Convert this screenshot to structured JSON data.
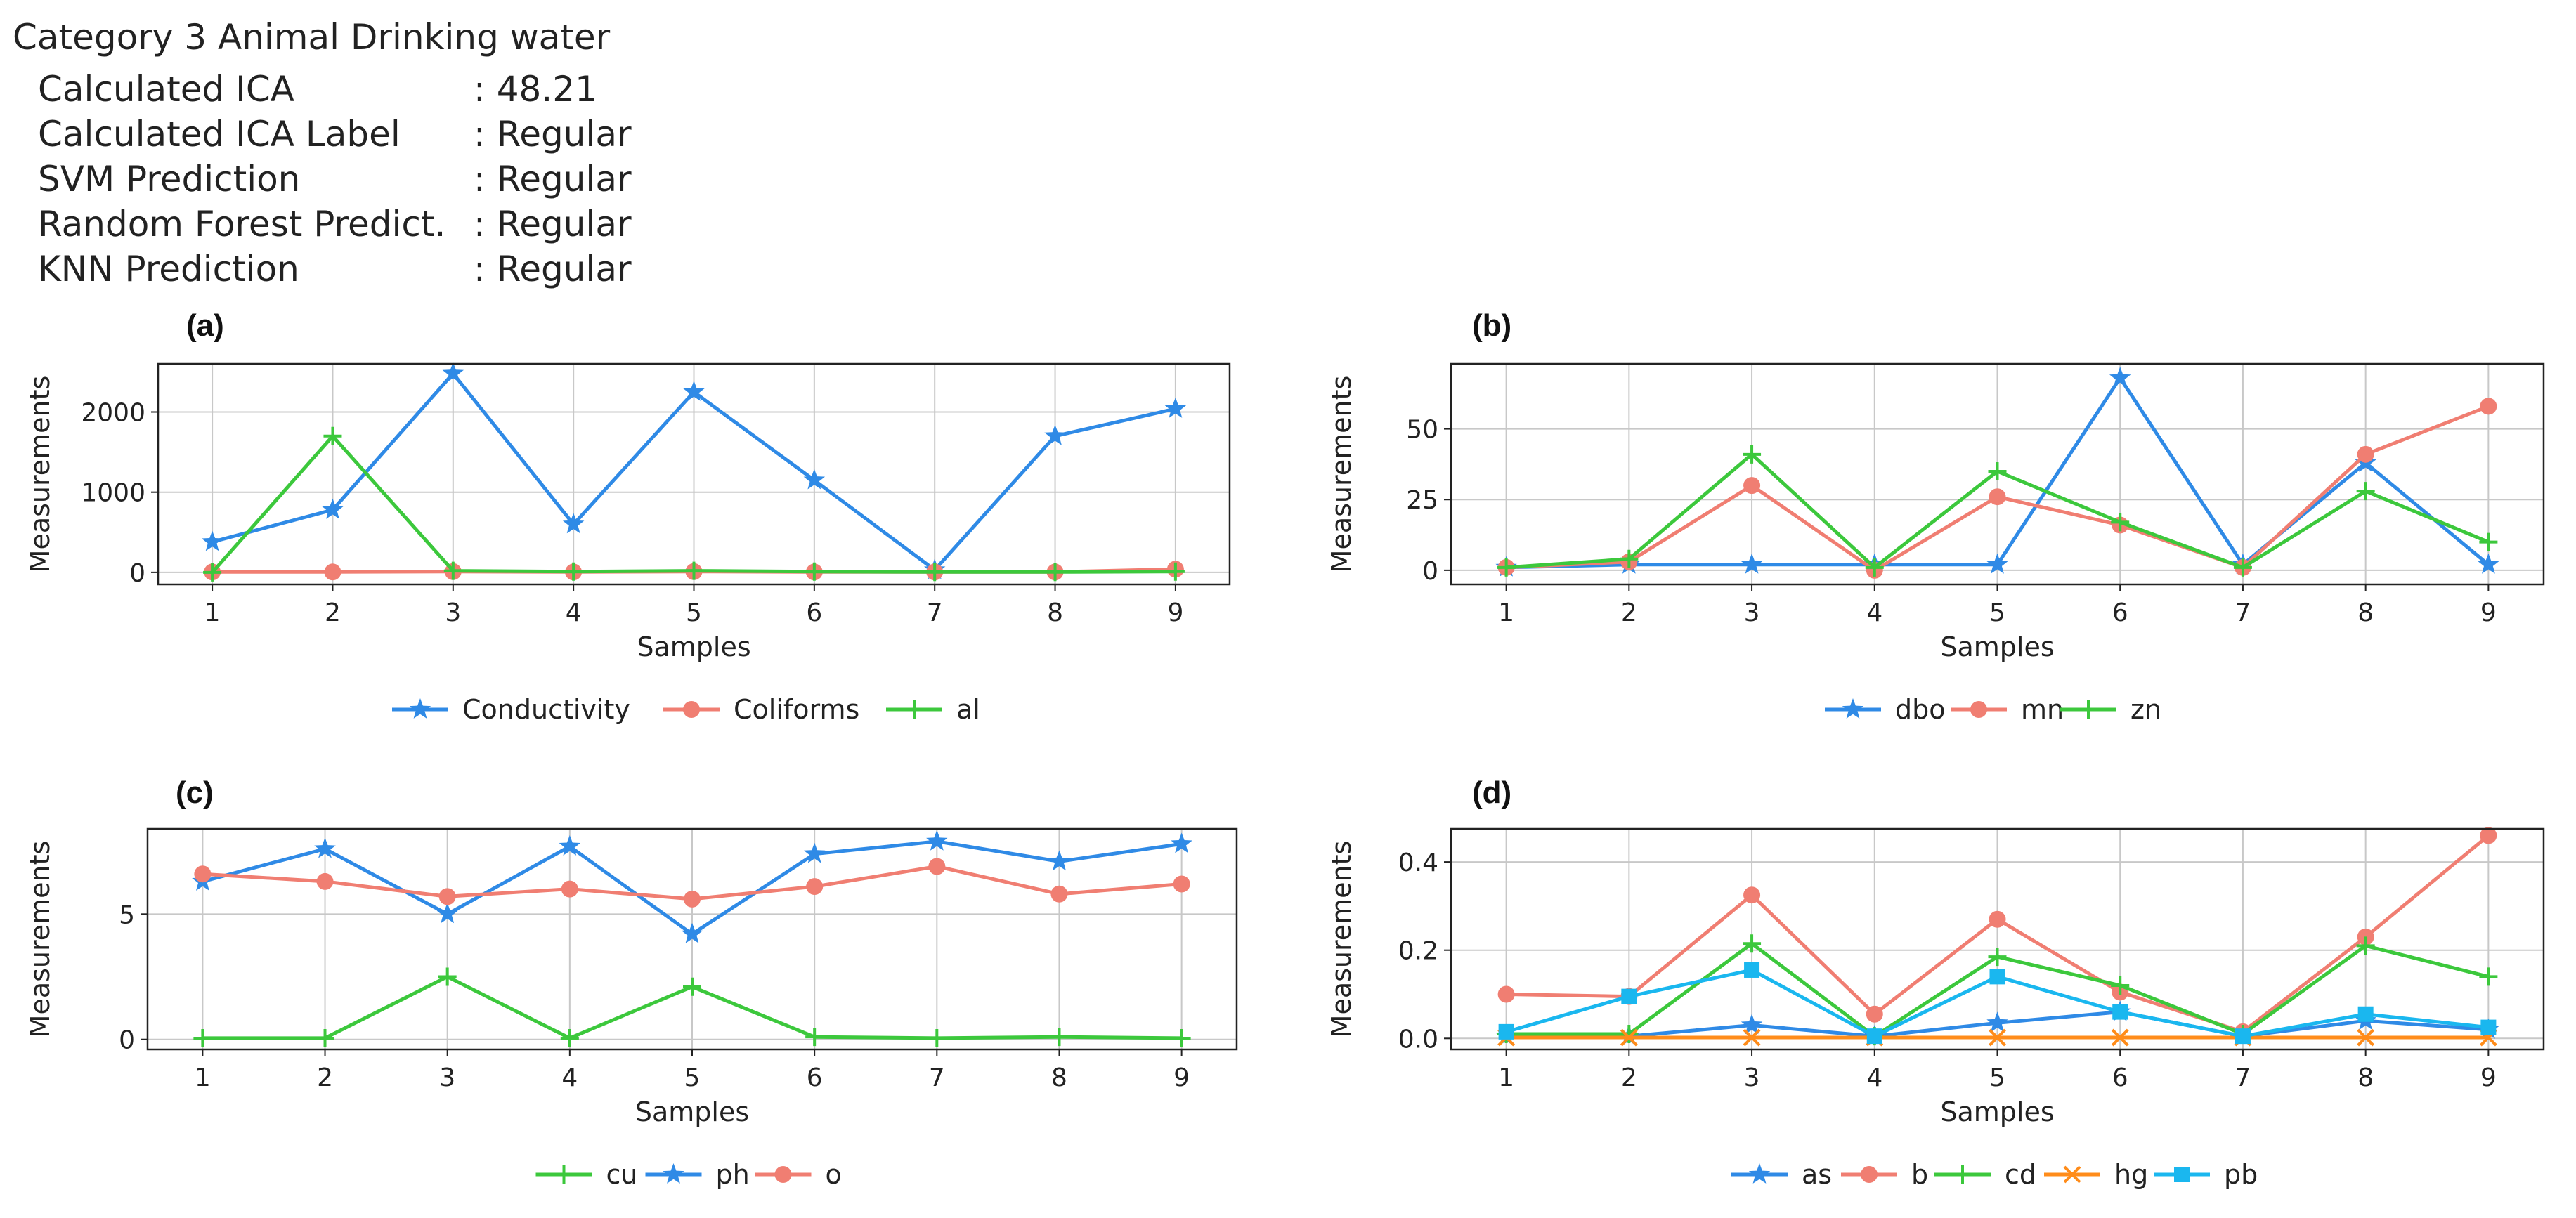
{
  "header": {
    "title": "Category 3 Animal Drinking water",
    "rows": [
      {
        "label": "Calculated ICA",
        "value": ": 48.21"
      },
      {
        "label": "Calculated ICA Label",
        "value": ": Regular"
      },
      {
        "label": "SVM Prediction",
        "value": ": Regular"
      },
      {
        "label": "Random Forest Predict.",
        "value": ": Regular"
      },
      {
        "label": "KNN Prediction",
        "value": ": Regular"
      }
    ]
  },
  "chart_data": [
    {
      "panel": "(a)",
      "type": "line",
      "x": [
        1,
        2,
        3,
        4,
        5,
        6,
        7,
        8,
        9
      ],
      "xlabel": "Samples",
      "ylabel": "Measurements",
      "ylim": [
        -150,
        2600
      ],
      "yticks": [
        0,
        1000,
        2000
      ],
      "grid": true,
      "legend_position": "bottom",
      "series": [
        {
          "name": "Conductivity",
          "color": "#2f8ae6",
          "marker": "star",
          "values": [
            380,
            780,
            2480,
            600,
            2250,
            1150,
            30,
            1700,
            2040
          ]
        },
        {
          "name": "Coliforms",
          "color": "#f07e72",
          "marker": "circle",
          "values": [
            5,
            5,
            10,
            5,
            10,
            5,
            5,
            5,
            40
          ]
        },
        {
          "name": "al",
          "color": "#3cc83c",
          "marker": "plus",
          "values": [
            0,
            1700,
            20,
            10,
            20,
            10,
            5,
            5,
            10
          ]
        }
      ]
    },
    {
      "panel": "(b)",
      "type": "line",
      "x": [
        1,
        2,
        3,
        4,
        5,
        6,
        7,
        8,
        9
      ],
      "xlabel": "Samples",
      "ylabel": "Measurements",
      "ylim": [
        -5,
        73
      ],
      "yticks": [
        0,
        25,
        50
      ],
      "grid": true,
      "legend_position": "bottom",
      "series": [
        {
          "name": "dbo",
          "color": "#2f8ae6",
          "marker": "star",
          "values": [
            1,
            2,
            2,
            2,
            2,
            68,
            2,
            38,
            2
          ]
        },
        {
          "name": "mn",
          "color": "#f07e72",
          "marker": "circle",
          "values": [
            1,
            3,
            30,
            0,
            26,
            16,
            1,
            41,
            58
          ]
        },
        {
          "name": "zn",
          "color": "#3cc83c",
          "marker": "plus",
          "values": [
            1,
            4,
            41,
            1,
            35,
            17,
            1,
            28,
            10
          ]
        }
      ]
    },
    {
      "panel": "(c)",
      "type": "line",
      "x": [
        1,
        2,
        3,
        4,
        5,
        6,
        7,
        8,
        9
      ],
      "xlabel": "Samples",
      "ylabel": "Measurements",
      "ylim": [
        -0.4,
        8.4
      ],
      "yticks": [
        0,
        5
      ],
      "grid": true,
      "legend_position": "bottom",
      "series": [
        {
          "name": "cu",
          "color": "#3cc83c",
          "marker": "plus",
          "values": [
            0.05,
            0.05,
            2.5,
            0.05,
            2.1,
            0.1,
            0.05,
            0.1,
            0.05
          ]
        },
        {
          "name": "ph",
          "color": "#2f8ae6",
          "marker": "star",
          "values": [
            6.3,
            7.6,
            5.0,
            7.7,
            4.2,
            7.4,
            7.9,
            7.1,
            7.8
          ]
        },
        {
          "name": "o",
          "color": "#f07e72",
          "marker": "circle",
          "values": [
            6.6,
            6.3,
            5.7,
            6.0,
            5.6,
            6.1,
            6.9,
            5.8,
            6.2
          ]
        }
      ]
    },
    {
      "panel": "(d)",
      "type": "line",
      "x": [
        1,
        2,
        3,
        4,
        5,
        6,
        7,
        8,
        9
      ],
      "xlabel": "Samples",
      "ylabel": "Measurements",
      "ylim": [
        -0.025,
        0.475
      ],
      "yticks": [
        0.0,
        0.2,
        0.4
      ],
      "grid": true,
      "legend_position": "bottom",
      "series": [
        {
          "name": "as",
          "color": "#2f8ae6",
          "marker": "star",
          "values": [
            0.005,
            0.005,
            0.03,
            0.005,
            0.035,
            0.06,
            0.005,
            0.04,
            0.02
          ]
        },
        {
          "name": "b",
          "color": "#f07e72",
          "marker": "circle",
          "values": [
            0.1,
            0.095,
            0.325,
            0.055,
            0.27,
            0.105,
            0.015,
            0.23,
            0.46
          ]
        },
        {
          "name": "cd",
          "color": "#3cc83c",
          "marker": "plus",
          "values": [
            0.01,
            0.01,
            0.215,
            0.005,
            0.185,
            0.12,
            0.01,
            0.21,
            0.14
          ]
        },
        {
          "name": "hg",
          "color": "#ff8c1a",
          "marker": "x",
          "values": [
            0.002,
            0.002,
            0.002,
            0.002,
            0.002,
            0.002,
            0.002,
            0.002,
            0.002
          ]
        },
        {
          "name": "pb",
          "color": "#1ab7ef",
          "marker": "square",
          "values": [
            0.015,
            0.095,
            0.155,
            0.005,
            0.14,
            0.06,
            0.005,
            0.055,
            0.025
          ]
        }
      ]
    }
  ]
}
